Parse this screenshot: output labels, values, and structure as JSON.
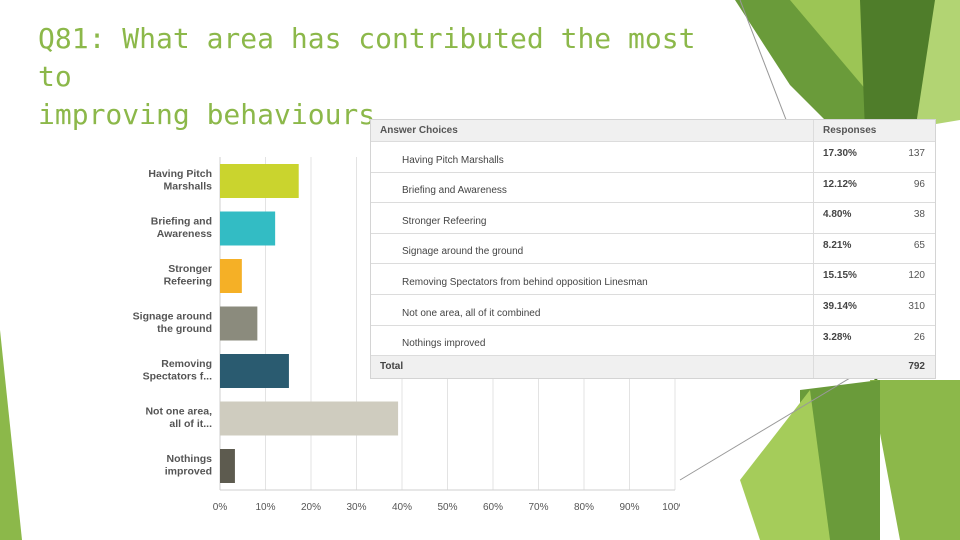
{
  "slide": {
    "title_line1": "Q81: What area has contributed the most to",
    "title_line2": "improving behaviours",
    "accent_colors": [
      "#8cb84a",
      "#6a9b3a",
      "#a5cc5a",
      "#4f7d2a"
    ]
  },
  "chart_data": {
    "type": "bar",
    "orientation": "horizontal",
    "categories": [
      [
        "Having Pitch",
        "Marshalls"
      ],
      [
        "Briefing and",
        "Awareness"
      ],
      [
        "Stronger",
        "Refeering"
      ],
      [
        "Signage around",
        "the ground"
      ],
      [
        "Removing",
        "Spectators f..."
      ],
      [
        "Not one area,",
        "all of it..."
      ],
      [
        "Nothings",
        "improved"
      ]
    ],
    "values": [
      17.3,
      12.12,
      4.8,
      8.21,
      15.15,
      39.14,
      3.28
    ],
    "colors": [
      "#cad42e",
      "#33bcc4",
      "#f5b026",
      "#8b8b7d",
      "#2a5b70",
      "#cfccbf",
      "#5d5b4f"
    ],
    "xlim": [
      0,
      100
    ],
    "xticks": [
      "0%",
      "10%",
      "20%",
      "30%",
      "40%",
      "50%",
      "60%",
      "70%",
      "80%",
      "90%",
      "100%"
    ],
    "grid": true
  },
  "table": {
    "headers": [
      "Answer Choices",
      "Responses"
    ],
    "rows": [
      {
        "choice": "Having Pitch Marshalls",
        "percent": "17.30%",
        "count": "137"
      },
      {
        "choice": "Briefing and Awareness",
        "percent": "12.12%",
        "count": "96"
      },
      {
        "choice": "Stronger Refeering",
        "percent": "4.80%",
        "count": "38"
      },
      {
        "choice": "Signage around the ground",
        "percent": "8.21%",
        "count": "65"
      },
      {
        "choice": "Removing Spectators from behind opposition Linesman",
        "percent": "15.15%",
        "count": "120"
      },
      {
        "choice": "Not one area, all of it combined",
        "percent": "39.14%",
        "count": "310"
      },
      {
        "choice": "Nothings improved",
        "percent": "3.28%",
        "count": "26"
      }
    ],
    "total_label": "Total",
    "total_value": "792"
  }
}
